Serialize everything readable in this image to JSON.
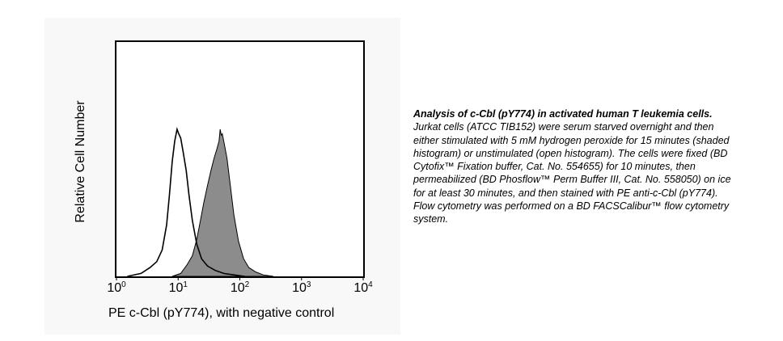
{
  "chart_data": {
    "type": "area",
    "xscale": "log",
    "xlim": [
      1,
      10000
    ],
    "ylabel": "Relative Cell Number",
    "xlabel": "PE c-Cbl (pY774), with negative control",
    "xticks": [
      {
        "base": "10",
        "exp": "0",
        "value": 1
      },
      {
        "base": "10",
        "exp": "1",
        "value": 10
      },
      {
        "base": "10",
        "exp": "2",
        "value": 100
      },
      {
        "base": "10",
        "exp": "3",
        "value": 1000
      },
      {
        "base": "10",
        "exp": "4",
        "value": 10000
      }
    ],
    "series": [
      {
        "name": "stimulated (shaded histogram)",
        "style": "filled",
        "fill": "#8c8c8c",
        "x": [
          8,
          11,
          14,
          17,
          20,
          23,
          26,
          30,
          34,
          38,
          42,
          46,
          48,
          50,
          52,
          56,
          62,
          70,
          80,
          95,
          115,
          140,
          180,
          240,
          350
        ],
        "y": [
          0,
          2,
          8,
          14,
          25,
          38,
          50,
          62,
          72,
          80,
          86,
          92,
          100,
          96,
          97,
          90,
          80,
          62,
          42,
          24,
          12,
          6,
          3,
          1,
          0
        ]
      },
      {
        "name": "unstimulated (open histogram)",
        "style": "outline",
        "stroke": "#000000",
        "x": [
          1.5,
          2.5,
          3.5,
          4.5,
          5.5,
          6.5,
          7.2,
          8,
          8.8,
          9.6,
          10.2,
          11,
          12,
          13.5,
          15,
          17,
          20,
          24,
          30,
          40,
          55,
          80,
          120
        ],
        "y": [
          0,
          2,
          6,
          10,
          18,
          35,
          55,
          78,
          92,
          100,
          97,
          94,
          85,
          72,
          55,
          38,
          22,
          12,
          7,
          4,
          2,
          1,
          0
        ]
      }
    ]
  },
  "caption": {
    "title": "Analysis of c-Cbl (pY774) in activated human T leukemia cells.",
    "body": "Jurkat cells (ATCC TIB152) were serum starved overnight and then either stimulated with 5 mM hydrogen peroxide for 15 minutes (shaded histogram) or unstimulated (open histogram).  The cells were fixed (BD Cytofix™ Fixation buffer, Cat. No. 554655) for 10 minutes, then permeabilized (BD Phosflow™ Perm Buffer III, Cat. No. 558050) on ice for at least 30 minutes, and then stained with PE anti-c-Cbl (pY774).  Flow cytometry was performed on a BD FACSCalibur™ flow cytometry system."
  }
}
